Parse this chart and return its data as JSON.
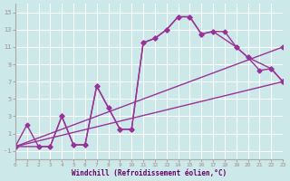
{
  "background_color": "#cce8e8",
  "line_color": "#993399",
  "marker": "D",
  "marker_size": 2.5,
  "linewidth": 1.0,
  "xlim": [
    0,
    23
  ],
  "ylim": [
    -2,
    16
  ],
  "xticks": [
    0,
    1,
    2,
    3,
    4,
    5,
    6,
    7,
    8,
    9,
    10,
    11,
    12,
    13,
    14,
    15,
    16,
    17,
    18,
    19,
    20,
    21,
    22,
    23
  ],
  "yticks": [
    -1,
    1,
    3,
    5,
    7,
    9,
    11,
    13,
    15
  ],
  "xlabel": "Windchill (Refroidissement éolien,°C)",
  "line1_x": [
    0,
    2,
    3,
    4,
    5,
    6,
    7,
    8,
    9,
    10,
    11,
    12,
    13,
    14,
    15,
    16,
    17,
    19,
    20,
    22,
    23
  ],
  "line1_y": [
    -0.5,
    -0.5,
    -0.5,
    3.0,
    -0.3,
    -0.3,
    6.5,
    4.0,
    1.5,
    1.5,
    11.5,
    12.0,
    13.0,
    14.5,
    14.5,
    12.5,
    12.8,
    11.0,
    9.8,
    8.5,
    7.0
  ],
  "line2_x": [
    0,
    1,
    2,
    3,
    4,
    5,
    6,
    7,
    8,
    9,
    10,
    11,
    12,
    13,
    14,
    15,
    16,
    17,
    18,
    19,
    20,
    21,
    22,
    23
  ],
  "line2_y": [
    -0.5,
    2.0,
    -0.5,
    -0.5,
    3.0,
    -0.3,
    -0.3,
    6.5,
    4.0,
    1.5,
    1.5,
    11.5,
    12.0,
    13.0,
    14.5,
    14.5,
    12.5,
    12.8,
    12.8,
    11.0,
    9.8,
    8.3,
    8.5,
    7.0
  ],
  "line3_x": [
    0,
    23
  ],
  "line3_y": [
    -0.5,
    11.0
  ],
  "line4_x": [
    0,
    23
  ],
  "line4_y": [
    -0.5,
    7.0
  ]
}
